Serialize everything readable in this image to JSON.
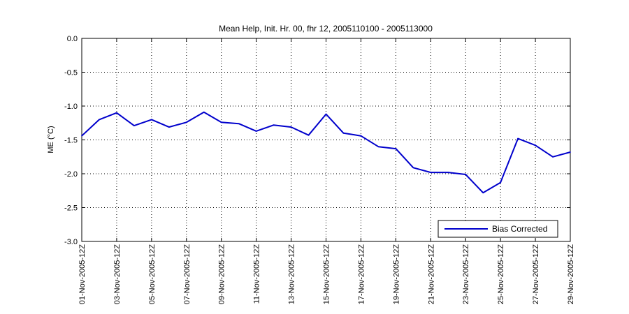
{
  "chart_data": {
    "type": "line",
    "title": "Mean Help, Init. Hr. 00, fhr 12, 2005110100 - 2005113000",
    "xlabel": "",
    "ylabel": "ME (°C)",
    "ylim": [
      -3.0,
      0.0
    ],
    "yticks": [
      "0.0",
      "-0.5",
      "-1.0",
      "-1.5",
      "-2.0",
      "-2.5",
      "-3.0"
    ],
    "xticks": [
      "01-Nov-2005-12Z",
      "03-Nov-2005-12Z",
      "05-Nov-2005-12Z",
      "07-Nov-2005-12Z",
      "09-Nov-2005-12Z",
      "11-Nov-2005-12Z",
      "13-Nov-2005-12Z",
      "15-Nov-2005-12Z",
      "17-Nov-2005-12Z",
      "19-Nov-2005-12Z",
      "21-Nov-2005-12Z",
      "23-Nov-2005-12Z",
      "25-Nov-2005-12Z",
      "27-Nov-2005-12Z",
      "29-Nov-2005-12Z"
    ],
    "grid": true,
    "legend_position": "bottom-right",
    "series": [
      {
        "name": "Bias Corrected",
        "color": "#0000cc",
        "x": [
          "01-Nov-2005-12Z",
          "02-Nov-2005-12Z",
          "03-Nov-2005-12Z",
          "04-Nov-2005-12Z",
          "05-Nov-2005-12Z",
          "06-Nov-2005-12Z",
          "07-Nov-2005-12Z",
          "08-Nov-2005-12Z",
          "09-Nov-2005-12Z",
          "10-Nov-2005-12Z",
          "11-Nov-2005-12Z",
          "12-Nov-2005-12Z",
          "13-Nov-2005-12Z",
          "14-Nov-2005-12Z",
          "15-Nov-2005-12Z",
          "16-Nov-2005-12Z",
          "17-Nov-2005-12Z",
          "18-Nov-2005-12Z",
          "19-Nov-2005-12Z",
          "20-Nov-2005-12Z",
          "21-Nov-2005-12Z",
          "22-Nov-2005-12Z",
          "23-Nov-2005-12Z",
          "24-Nov-2005-12Z",
          "25-Nov-2005-12Z",
          "26-Nov-2005-12Z",
          "27-Nov-2005-12Z",
          "28-Nov-2005-12Z",
          "29-Nov-2005-12Z"
        ],
        "values": [
          -1.44,
          -1.2,
          -1.1,
          -1.29,
          -1.2,
          -1.31,
          -1.24,
          -1.09,
          -1.24,
          -1.26,
          -1.37,
          -1.28,
          -1.31,
          -1.43,
          -1.12,
          -1.4,
          -1.44,
          -1.6,
          -1.63,
          -1.91,
          -1.98,
          -1.98,
          -2.01,
          -2.28,
          -2.13,
          -1.48,
          -1.58,
          -1.75,
          -1.68
        ]
      }
    ]
  }
}
